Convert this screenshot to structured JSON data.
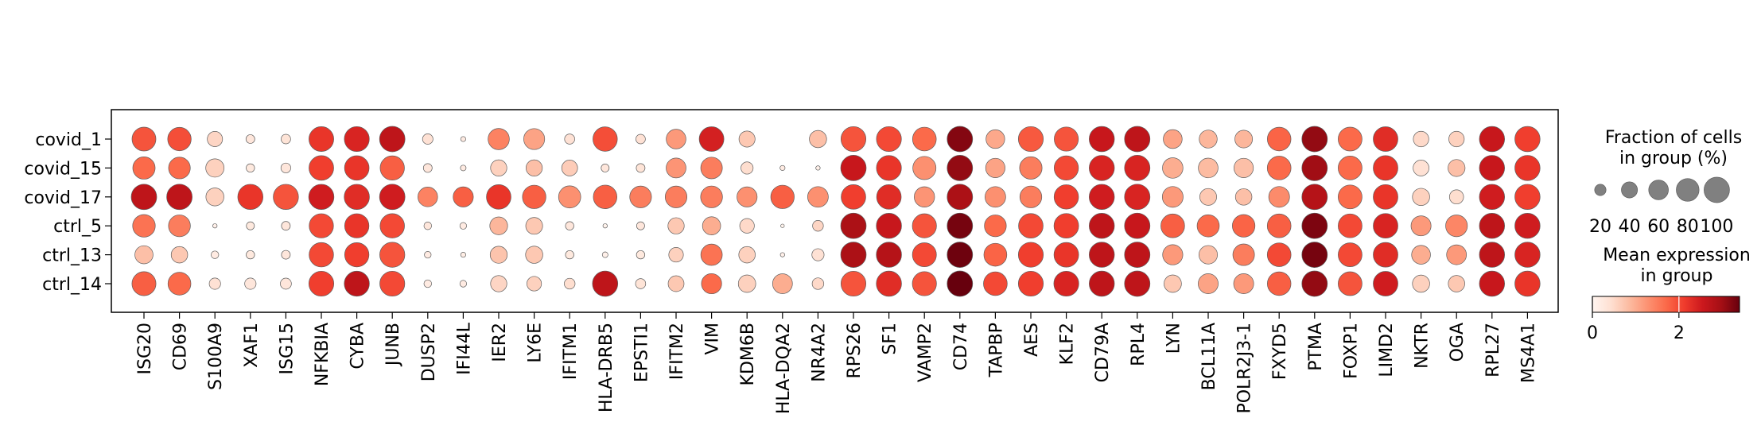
{
  "chart_data": {
    "type": "dotplot",
    "groups": [
      "covid_1",
      "covid_15",
      "covid_17",
      "ctrl_5",
      "ctrl_13",
      "ctrl_14"
    ],
    "genes": [
      "ISG20",
      "CD69",
      "S100A9",
      "XAF1",
      "ISG15",
      "NFKBIA",
      "CYBA",
      "JUNB",
      "DUSP2",
      "IFI44L",
      "IER2",
      "LY6E",
      "IFITM1",
      "HLA-DRB5",
      "EPSTI1",
      "IFITM2",
      "VIM",
      "KDM6B",
      "HLA-DQA2",
      "NR4A2",
      "RPS26",
      "SF1",
      "VAMP2",
      "CD74",
      "TAPBP",
      "AES",
      "KLF2",
      "CD79A",
      "RPL4",
      "LYN",
      "BCL11A",
      "POLR2J3-1",
      "FXYD5",
      "PTMA",
      "FOXP1",
      "LIMD2",
      "NKTR",
      "OGA",
      "RPL27",
      "MS4A1"
    ],
    "fraction": [
      [
        88,
        85,
        36,
        12,
        14,
        95,
        96,
        100,
        17,
        4,
        70,
        68,
        16,
        92,
        14,
        60,
        94,
        40,
        0,
        46,
        96,
        96,
        87,
        100,
        54,
        96,
        90,
        98,
        100,
        55,
        50,
        48,
        86,
        100,
        88,
        94,
        37,
        37,
        98,
        98
      ],
      [
        77,
        73,
        52,
        11,
        15,
        94,
        93,
        91,
        12,
        5,
        41,
        41,
        39,
        10,
        12,
        61,
        72,
        23,
        4,
        3,
        100,
        96,
        83,
        100,
        58,
        78,
        91,
        98,
        100,
        65,
        60,
        58,
        87,
        100,
        88,
        94,
        39,
        45,
        98,
        98
      ],
      [
        100,
        100,
        50,
        98,
        98,
        98,
        98,
        100,
        60,
        63,
        93,
        85,
        76,
        86,
        73,
        73,
        74,
        63,
        85,
        66,
        93,
        93,
        64,
        100,
        66,
        74,
        92,
        98,
        100,
        67,
        44,
        42,
        67,
        100,
        88,
        94,
        46,
        31,
        98,
        98
      ],
      [
        79,
        74,
        3,
        10,
        12,
        91,
        91,
        92,
        9,
        7,
        49,
        44,
        11,
        3,
        10,
        41,
        51,
        33,
        2,
        18,
        100,
        98,
        90,
        100,
        74,
        93,
        94,
        98,
        100,
        87,
        76,
        79,
        87,
        100,
        88,
        94,
        62,
        73,
        98,
        98
      ],
      [
        51,
        42,
        9,
        11,
        12,
        92,
        91,
        97,
        7,
        4,
        45,
        46,
        11,
        5,
        11,
        33,
        71,
        42,
        3,
        23,
        100,
        98,
        89,
        100,
        81,
        96,
        94,
        98,
        100,
        63,
        53,
        72,
        87,
        100,
        88,
        94,
        55,
        61,
        98,
        98
      ],
      [
        89,
        81,
        20,
        20,
        19,
        96,
        97,
        96,
        9,
        7,
        41,
        33,
        18,
        99,
        16,
        39,
        63,
        47,
        61,
        21,
        96,
        98,
        90,
        100,
        87,
        96,
        96,
        98,
        100,
        47,
        62,
        62,
        86,
        100,
        88,
        94,
        46,
        42,
        98,
        98
      ]
    ],
    "mean_expression": [
      [
        1.9,
        1.95,
        0.55,
        0.3,
        0.35,
        2.2,
        2.4,
        2.7,
        0.4,
        0.2,
        1.45,
        1.1,
        0.4,
        1.95,
        0.4,
        1.2,
        2.45,
        0.7,
        0.0,
        0.8,
        1.9,
        2.0,
        1.7,
        3.2,
        1.05,
        1.85,
        1.9,
        2.6,
        2.7,
        1.1,
        0.9,
        0.9,
        1.75,
        3.1,
        1.7,
        2.3,
        0.5,
        0.6,
        2.6,
        2.1
      ],
      [
        1.7,
        1.7,
        0.6,
        0.25,
        0.3,
        2.1,
        2.2,
        1.8,
        0.3,
        0.2,
        0.6,
        0.8,
        0.65,
        0.3,
        0.35,
        1.25,
        1.5,
        0.45,
        0.2,
        0.1,
        2.6,
        2.2,
        1.3,
        3.1,
        1.1,
        1.5,
        2.0,
        2.4,
        2.4,
        1.0,
        0.85,
        0.8,
        1.7,
        3.0,
        1.7,
        2.2,
        0.4,
        0.8,
        2.6,
        2.2
      ],
      [
        2.7,
        2.7,
        0.6,
        2.2,
        1.9,
        2.5,
        2.3,
        2.5,
        1.45,
        1.8,
        2.2,
        1.8,
        1.3,
        1.8,
        1.5,
        1.5,
        1.5,
        1.3,
        1.8,
        1.3,
        2.1,
        2.3,
        1.25,
        2.9,
        1.3,
        1.5,
        2.1,
        2.5,
        2.4,
        1.2,
        0.7,
        0.8,
        1.35,
        2.8,
        1.7,
        2.2,
        0.6,
        0.45,
        2.5,
        2.1
      ],
      [
        1.6,
        1.5,
        0.1,
        0.25,
        0.3,
        2.0,
        2.2,
        2.0,
        0.3,
        0.2,
        0.9,
        0.7,
        0.3,
        0.05,
        0.3,
        0.7,
        1.0,
        0.5,
        0.05,
        0.55,
        2.9,
        2.6,
        1.9,
        3.3,
        1.7,
        2.0,
        2.1,
        2.7,
        2.6,
        1.8,
        1.7,
        1.75,
        1.8,
        3.25,
        2.0,
        2.4,
        1.2,
        1.4,
        2.7,
        2.5
      ],
      [
        0.8,
        0.7,
        0.2,
        0.25,
        0.3,
        2.0,
        2.1,
        1.9,
        0.2,
        0.15,
        0.75,
        0.7,
        0.25,
        0.1,
        0.25,
        0.6,
        1.6,
        0.6,
        0.1,
        0.4,
        2.9,
        2.8,
        2.0,
        3.35,
        1.75,
        2.1,
        2.2,
        2.7,
        2.7,
        1.2,
        0.8,
        1.5,
        2.0,
        3.3,
        2.0,
        2.3,
        1.0,
        1.2,
        2.7,
        2.4
      ],
      [
        1.8,
        1.7,
        0.4,
        0.3,
        0.3,
        2.1,
        2.7,
        2.0,
        0.2,
        0.2,
        0.55,
        0.6,
        0.45,
        2.7,
        0.35,
        0.7,
        1.7,
        0.6,
        1.0,
        0.5,
        1.9,
        2.3,
        1.9,
        3.4,
        2.0,
        2.1,
        2.4,
        2.7,
        2.7,
        0.7,
        1.1,
        1.2,
        1.8,
        3.1,
        1.9,
        2.5,
        0.6,
        0.7,
        2.6,
        2.2
      ]
    ],
    "legend": {
      "size_title": "Fraction of cells\nin group (%)",
      "size_ticks": [
        20,
        40,
        60,
        80,
        100
      ],
      "color_title": "Mean expression\nin group",
      "color_ticks": [
        0,
        2
      ],
      "color_range": [
        0,
        3.4
      ],
      "colormap": "Reds"
    },
    "colors": {
      "cmap_stops": [
        "#fff5f0",
        "#fee0d2",
        "#fcbba1",
        "#fc9272",
        "#fb6a4a",
        "#ef3b2c",
        "#cb181d",
        "#a50f15",
        "#67000d"
      ],
      "dot_edge": "#5f5f5f",
      "legend_dot": "#808080"
    }
  }
}
